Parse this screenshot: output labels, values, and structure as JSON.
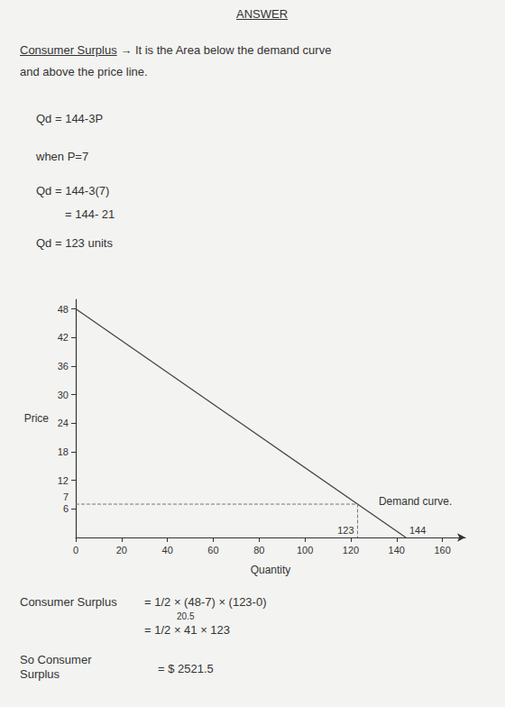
{
  "header": {
    "title": "ANSWER"
  },
  "definition": {
    "term": "Consumer Surplus",
    "arrow": "→",
    "lines": [
      "It is the Area below the demand curve",
      "and above the price line."
    ]
  },
  "equations": [
    "Qd = 144-3P",
    "when P=7",
    "Qd = 144-3(7)",
    "= 144- 21",
    "Qd = 123 units"
  ],
  "chart_data": {
    "type": "line",
    "x_label": "Quantity",
    "y_label": "Price",
    "demand": {
      "label": "Demand curve.",
      "x": [
        0,
        144
      ],
      "values": [
        48,
        0
      ],
      "color": "#444444"
    },
    "price": 7,
    "quantity": 123,
    "xlim": [
      0,
      170
    ],
    "xticks": [
      0,
      20,
      40,
      60,
      80,
      100,
      120,
      140,
      160
    ],
    "ylim": [
      0,
      50
    ],
    "yticks": [
      6,
      12,
      18,
      24,
      30,
      36,
      42,
      48
    ],
    "grid": false
  },
  "working": {
    "label": "Consumer Surplus",
    "lines": [
      "= 1/2 × (48-7) × (123-0)",
      "= 1/2 × 41 × 123"
    ],
    "note": "20.5"
  },
  "result": {
    "label": "So Consumer Surplus",
    "text": "= $ 2521.5"
  }
}
